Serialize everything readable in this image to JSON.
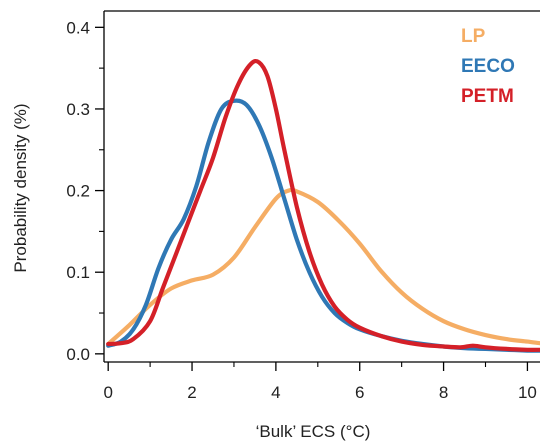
{
  "chart_data": {
    "type": "line",
    "xlabel": "‘Bulk’ ECS (°C)",
    "ylabel": "Probability density (%)",
    "xlim": [
      -0.1,
      10.3
    ],
    "ylim": [
      -0.01,
      0.42
    ],
    "x_ticks": [
      0,
      2,
      4,
      6,
      8,
      10
    ],
    "x_tick_labels": [
      "0",
      "2",
      "4",
      "6",
      "8",
      "10"
    ],
    "y_ticks": [
      0.0,
      0.1,
      0.2,
      0.3,
      0.4
    ],
    "y_tick_labels": [
      "0.0",
      "0.1",
      "0.2",
      "0.3",
      "0.4"
    ],
    "legend_position": "top-right",
    "grid": false,
    "series": [
      {
        "name": "LP",
        "color": "#F5AD64",
        "x": [
          0,
          0.5,
          1.0,
          1.5,
          2.0,
          2.5,
          3.0,
          3.5,
          4.0,
          4.3,
          4.5,
          5.0,
          5.5,
          6.0,
          6.5,
          7.0,
          7.5,
          8.0,
          8.5,
          9.0,
          9.5,
          10.0,
          10.3
        ],
        "y": [
          0.012,
          0.035,
          0.06,
          0.08,
          0.09,
          0.097,
          0.118,
          0.155,
          0.19,
          0.2,
          0.199,
          0.186,
          0.163,
          0.135,
          0.102,
          0.075,
          0.055,
          0.04,
          0.03,
          0.023,
          0.018,
          0.015,
          0.013
        ]
      },
      {
        "name": "EECO",
        "color": "#2F78B5",
        "x": [
          0,
          0.3,
          0.6,
          0.9,
          1.2,
          1.5,
          1.8,
          2.1,
          2.4,
          2.7,
          3.0,
          3.3,
          3.6,
          3.9,
          4.2,
          4.5,
          4.8,
          5.1,
          5.4,
          5.7,
          6.0,
          6.5,
          7.0,
          7.5,
          8.0,
          8.5,
          9.0,
          9.5,
          10.0,
          10.3
        ],
        "y": [
          0.01,
          0.015,
          0.03,
          0.06,
          0.105,
          0.14,
          0.165,
          0.205,
          0.26,
          0.3,
          0.31,
          0.305,
          0.28,
          0.24,
          0.19,
          0.14,
          0.1,
          0.07,
          0.05,
          0.038,
          0.03,
          0.022,
          0.016,
          0.012,
          0.009,
          0.007,
          0.006,
          0.005,
          0.004,
          0.004
        ]
      },
      {
        "name": "PETM",
        "color": "#D42028",
        "x": [
          0,
          0.3,
          0.6,
          1.0,
          1.3,
          1.6,
          1.9,
          2.2,
          2.5,
          2.8,
          3.1,
          3.4,
          3.6,
          3.8,
          4.0,
          4.2,
          4.5,
          4.8,
          5.1,
          5.4,
          5.7,
          6.0,
          6.5,
          7.0,
          7.5,
          8.0,
          8.4,
          8.7,
          9.0,
          9.5,
          10.0,
          10.3
        ],
        "y": [
          0.012,
          0.013,
          0.018,
          0.04,
          0.08,
          0.12,
          0.16,
          0.2,
          0.24,
          0.29,
          0.33,
          0.355,
          0.357,
          0.34,
          0.3,
          0.25,
          0.18,
          0.125,
          0.085,
          0.058,
          0.042,
          0.032,
          0.022,
          0.015,
          0.011,
          0.009,
          0.008,
          0.01,
          0.008,
          0.006,
          0.005,
          0.005
        ]
      }
    ]
  }
}
